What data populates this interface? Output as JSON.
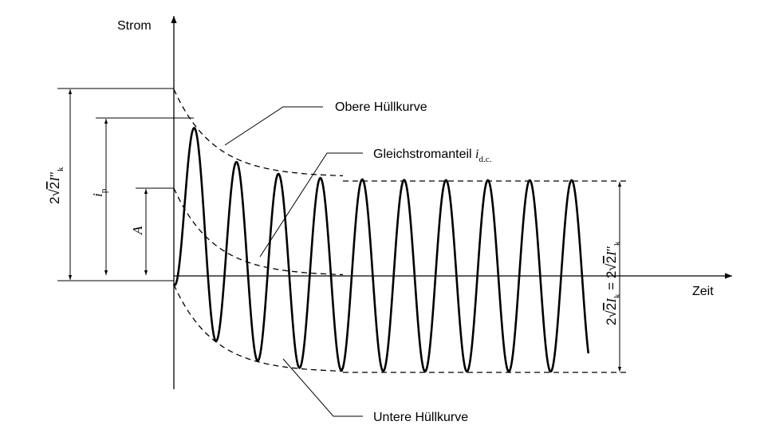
{
  "diagram": {
    "labels": {
      "y_axis": "Strom",
      "x_axis": "Zeit",
      "upper_envelope": "Obere Hüllkurve",
      "lower_envelope": "Untere Hüllkurve",
      "dc_component_text": "Gleichstromanteil ",
      "dc_component_symbol": "i",
      "dc_component_subscript": "d.c.",
      "peak_current_symbol": "i",
      "peak_current_subscript": "p",
      "initial_dc_symbol": "A",
      "initial_sc_lead": "2",
      "initial_sc_root": "2",
      "initial_sc_symbol": "I",
      "initial_sc_subscript": "k",
      "initial_sc_prime": "″",
      "steady_sc_lead": "2",
      "steady_sc_root": "2",
      "steady_sc_symbol": "I",
      "steady_sc_subscript": "k",
      "steady_equals": " = 2",
      "steady_root2": "2",
      "steady_sc2_symbol": "I",
      "steady_sc2_subscript": "k",
      "steady_sc2_prime": "″"
    },
    "colors": {
      "ink": "#000000",
      "background": "#ffffff"
    }
  }
}
